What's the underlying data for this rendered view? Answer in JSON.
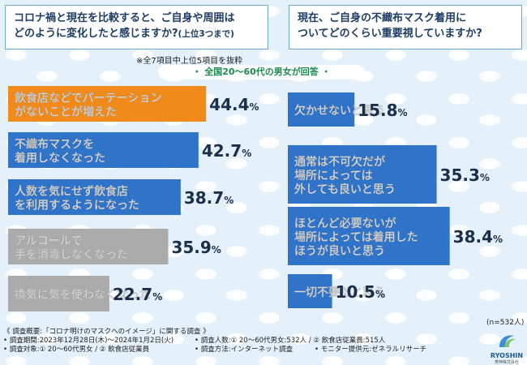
{
  "questions": {
    "q1_line1": "コロナ禍と現在を比較すると、ご自身や周囲は",
    "q1_line2": "どのように変化したと感じますか?",
    "q1_suffix": "(上位3つまで)",
    "q2_line1": "現在、ご自身の不織布マスク着用に",
    "q2_line2": "ついてどのくらい重要視していますか?"
  },
  "note": "※全7項目中上位5項目を抜粋",
  "subtitle": "・ 全国20〜60代の男女が回答 ・",
  "n_count": "(n=532人)",
  "chart_data": [
    {
      "type": "bar",
      "orientation": "horizontal",
      "categories": [
        [
          "飲食店などでパーテーション",
          "がないことが増えた"
        ],
        [
          "不織布マスクを",
          "着用しなくなった"
        ],
        [
          "人数を気にせず飲食店",
          "を利用するようになった"
        ],
        [
          "アルコールで",
          "手を消毒しなくなった"
        ],
        [
          "換気に気を使わなくなった"
        ]
      ],
      "values": [
        44.4,
        42.7,
        38.7,
        35.9,
        22.7
      ],
      "labels": [
        "44.4",
        "42.7",
        "38.7",
        "35.9",
        "22.7"
      ],
      "unit": "%",
      "colors": [
        "#f08a1a",
        "#2f74c8",
        "#2f74c8",
        "#ababab",
        "#ababab"
      ]
    },
    {
      "type": "bar",
      "orientation": "horizontal",
      "categories": [
        [
          "欠かせないと思う"
        ],
        [
          "通常は不可欠だが",
          "場所によっては",
          "外しても良いと思う"
        ],
        [
          "ほとんど必要ないが",
          "場所によっては着用した",
          "ほうが良いと思う"
        ],
        [
          "一切不要だと思う"
        ]
      ],
      "values": [
        15.8,
        35.3,
        38.4,
        10.5
      ],
      "labels": [
        "15.8",
        "35.3",
        "38.4",
        "10.5"
      ],
      "unit": "%",
      "colors": [
        "#2f74c8",
        "#2f74c8",
        "#2f74c8",
        "#2f74c8"
      ]
    }
  ],
  "footer": {
    "line1": "《 調査概要:「コロナ明けのマスクへのイメージ」に関する調査 》",
    "period": "• 調査期間:2023年12月28日(木)〜2024年1月2日(火)",
    "people": "• 調査人数:① 20〜60代男女:532人 / ② 飲食店従業員:515人",
    "target": "• 調査対象:① 20〜60代男女 / ② 飲食店従業員",
    "method": "• 調査方法:インターネット調査",
    "provider": "• モニター提供元:ゼネラルリサーチ"
  },
  "logo": {
    "name": "RYOSHIN",
    "sub": "菱伸株式会社"
  }
}
